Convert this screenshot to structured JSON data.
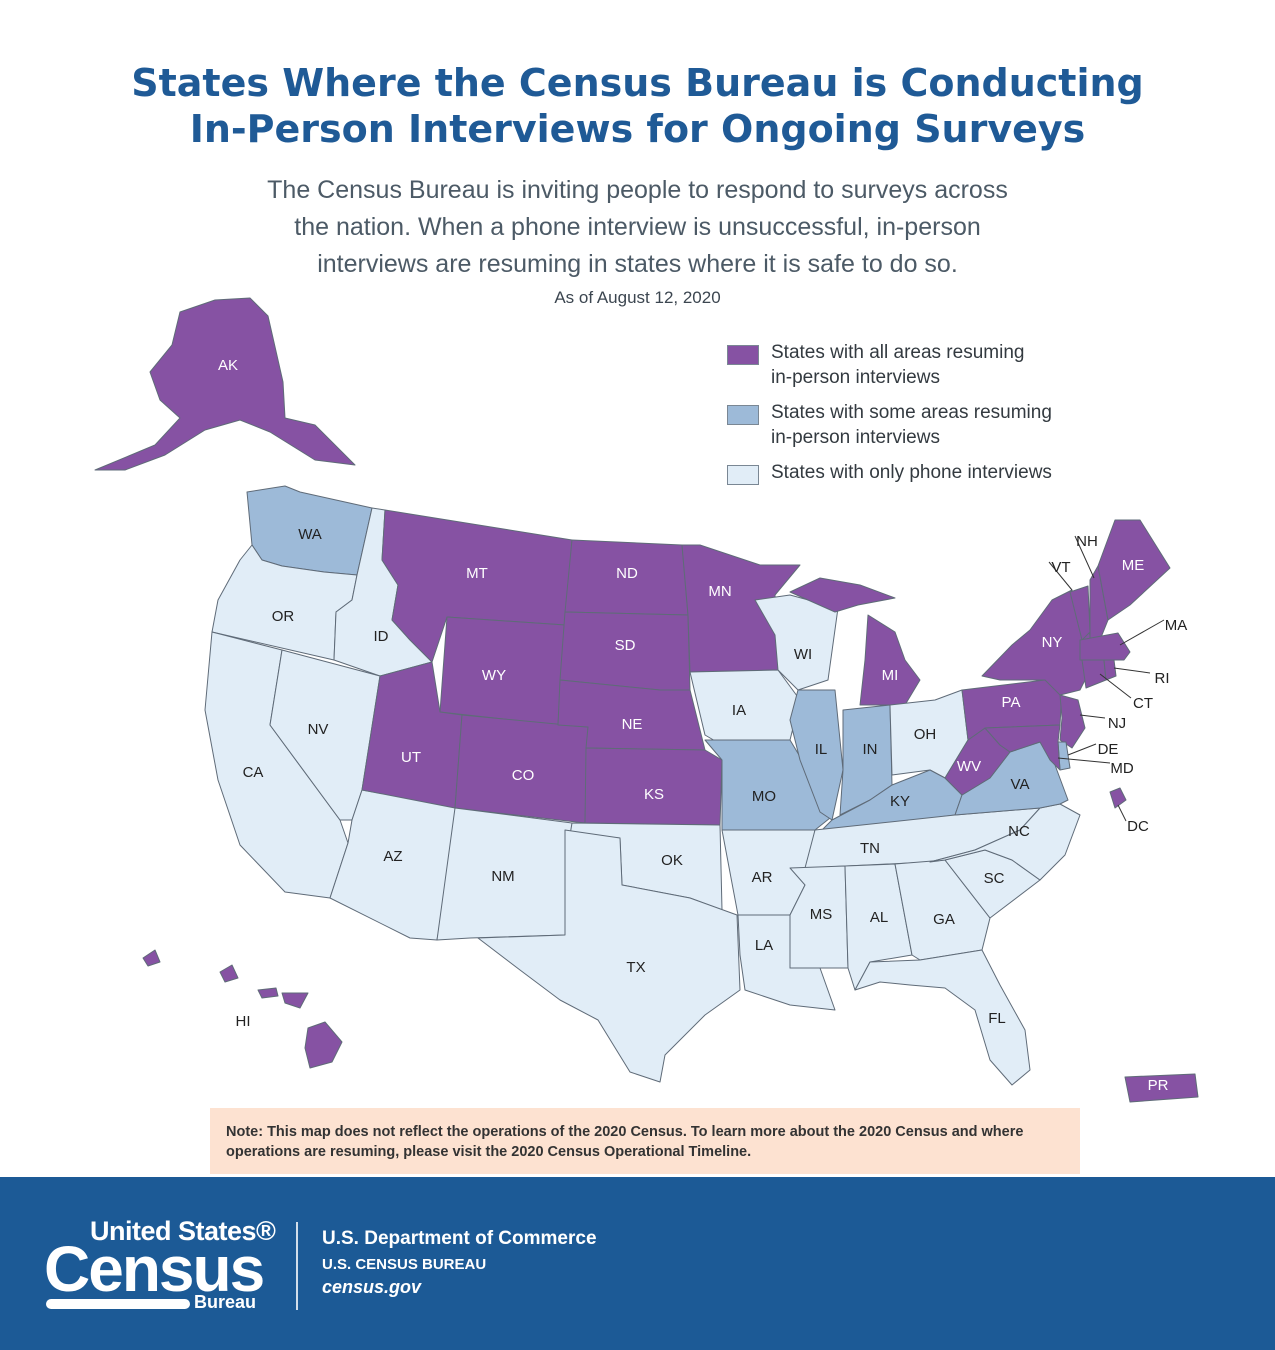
{
  "title_line1": "States Where the Census Bureau is Conducting",
  "title_line2": "In-Person Interviews for Ongoing Surveys",
  "subtitle_line1": "The Census Bureau is inviting people to respond to surveys across",
  "subtitle_line2": "the nation. When a phone interview is unsuccessful, in-person",
  "subtitle_line3": "interviews are resuming in states where it is safe to do so.",
  "as_of": "As of August 12, 2020",
  "colors": {
    "all": "#8652a3",
    "some": "#9dbad8",
    "phone": "#e1edf7",
    "border": "#5f6b78",
    "note_bg": "#fde2d1",
    "footer_bg": "#1c5a96"
  },
  "legend": [
    {
      "key": "all",
      "line1": "States with all areas resuming",
      "line2": "in-person interviews"
    },
    {
      "key": "some",
      "line1": "States with some areas resuming",
      "line2": "in-person interviews"
    },
    {
      "key": "phone",
      "line1": "States with only phone interviews",
      "line2": ""
    }
  ],
  "states": {
    "WA": "some",
    "OR": "phone",
    "CA": "phone",
    "ID": "phone",
    "NV": "phone",
    "AZ": "phone",
    "MT": "all",
    "WY": "all",
    "UT": "all",
    "CO": "all",
    "NM": "phone",
    "ND": "all",
    "SD": "all",
    "NE": "all",
    "KS": "all",
    "OK": "phone",
    "TX": "phone",
    "MN": "all",
    "IA": "phone",
    "MO": "some",
    "AR": "phone",
    "LA": "phone",
    "WI": "phone",
    "IL": "some",
    "MI": "all",
    "IN": "some",
    "OH": "phone",
    "KY": "some",
    "TN": "phone",
    "MS": "phone",
    "AL": "phone",
    "GA": "phone",
    "FL": "phone",
    "SC": "phone",
    "NC": "phone",
    "VA": "some",
    "WV": "all",
    "PA": "all",
    "NY": "all",
    "NJ": "all",
    "DE": "some",
    "MD": "all",
    "DC": "all",
    "CT": "all",
    "RI": "all",
    "MA": "all",
    "VT": "all",
    "NH": "all",
    "ME": "all",
    "AK": "all",
    "HI": "all",
    "PR": "all"
  },
  "note": "Note: This map does not reflect the operations of the 2020 Census. To learn more about the 2020 Census and where operations are resuming, please visit the 2020 Census Operational Timeline.",
  "footer": {
    "logo_line1": "United States®",
    "logo_line2": "Census",
    "logo_line3": "Bureau",
    "dept_line1": "U.S. Department of Commerce",
    "dept_line2": "U.S. CENSUS BUREAU",
    "dept_line3": "census.gov"
  }
}
